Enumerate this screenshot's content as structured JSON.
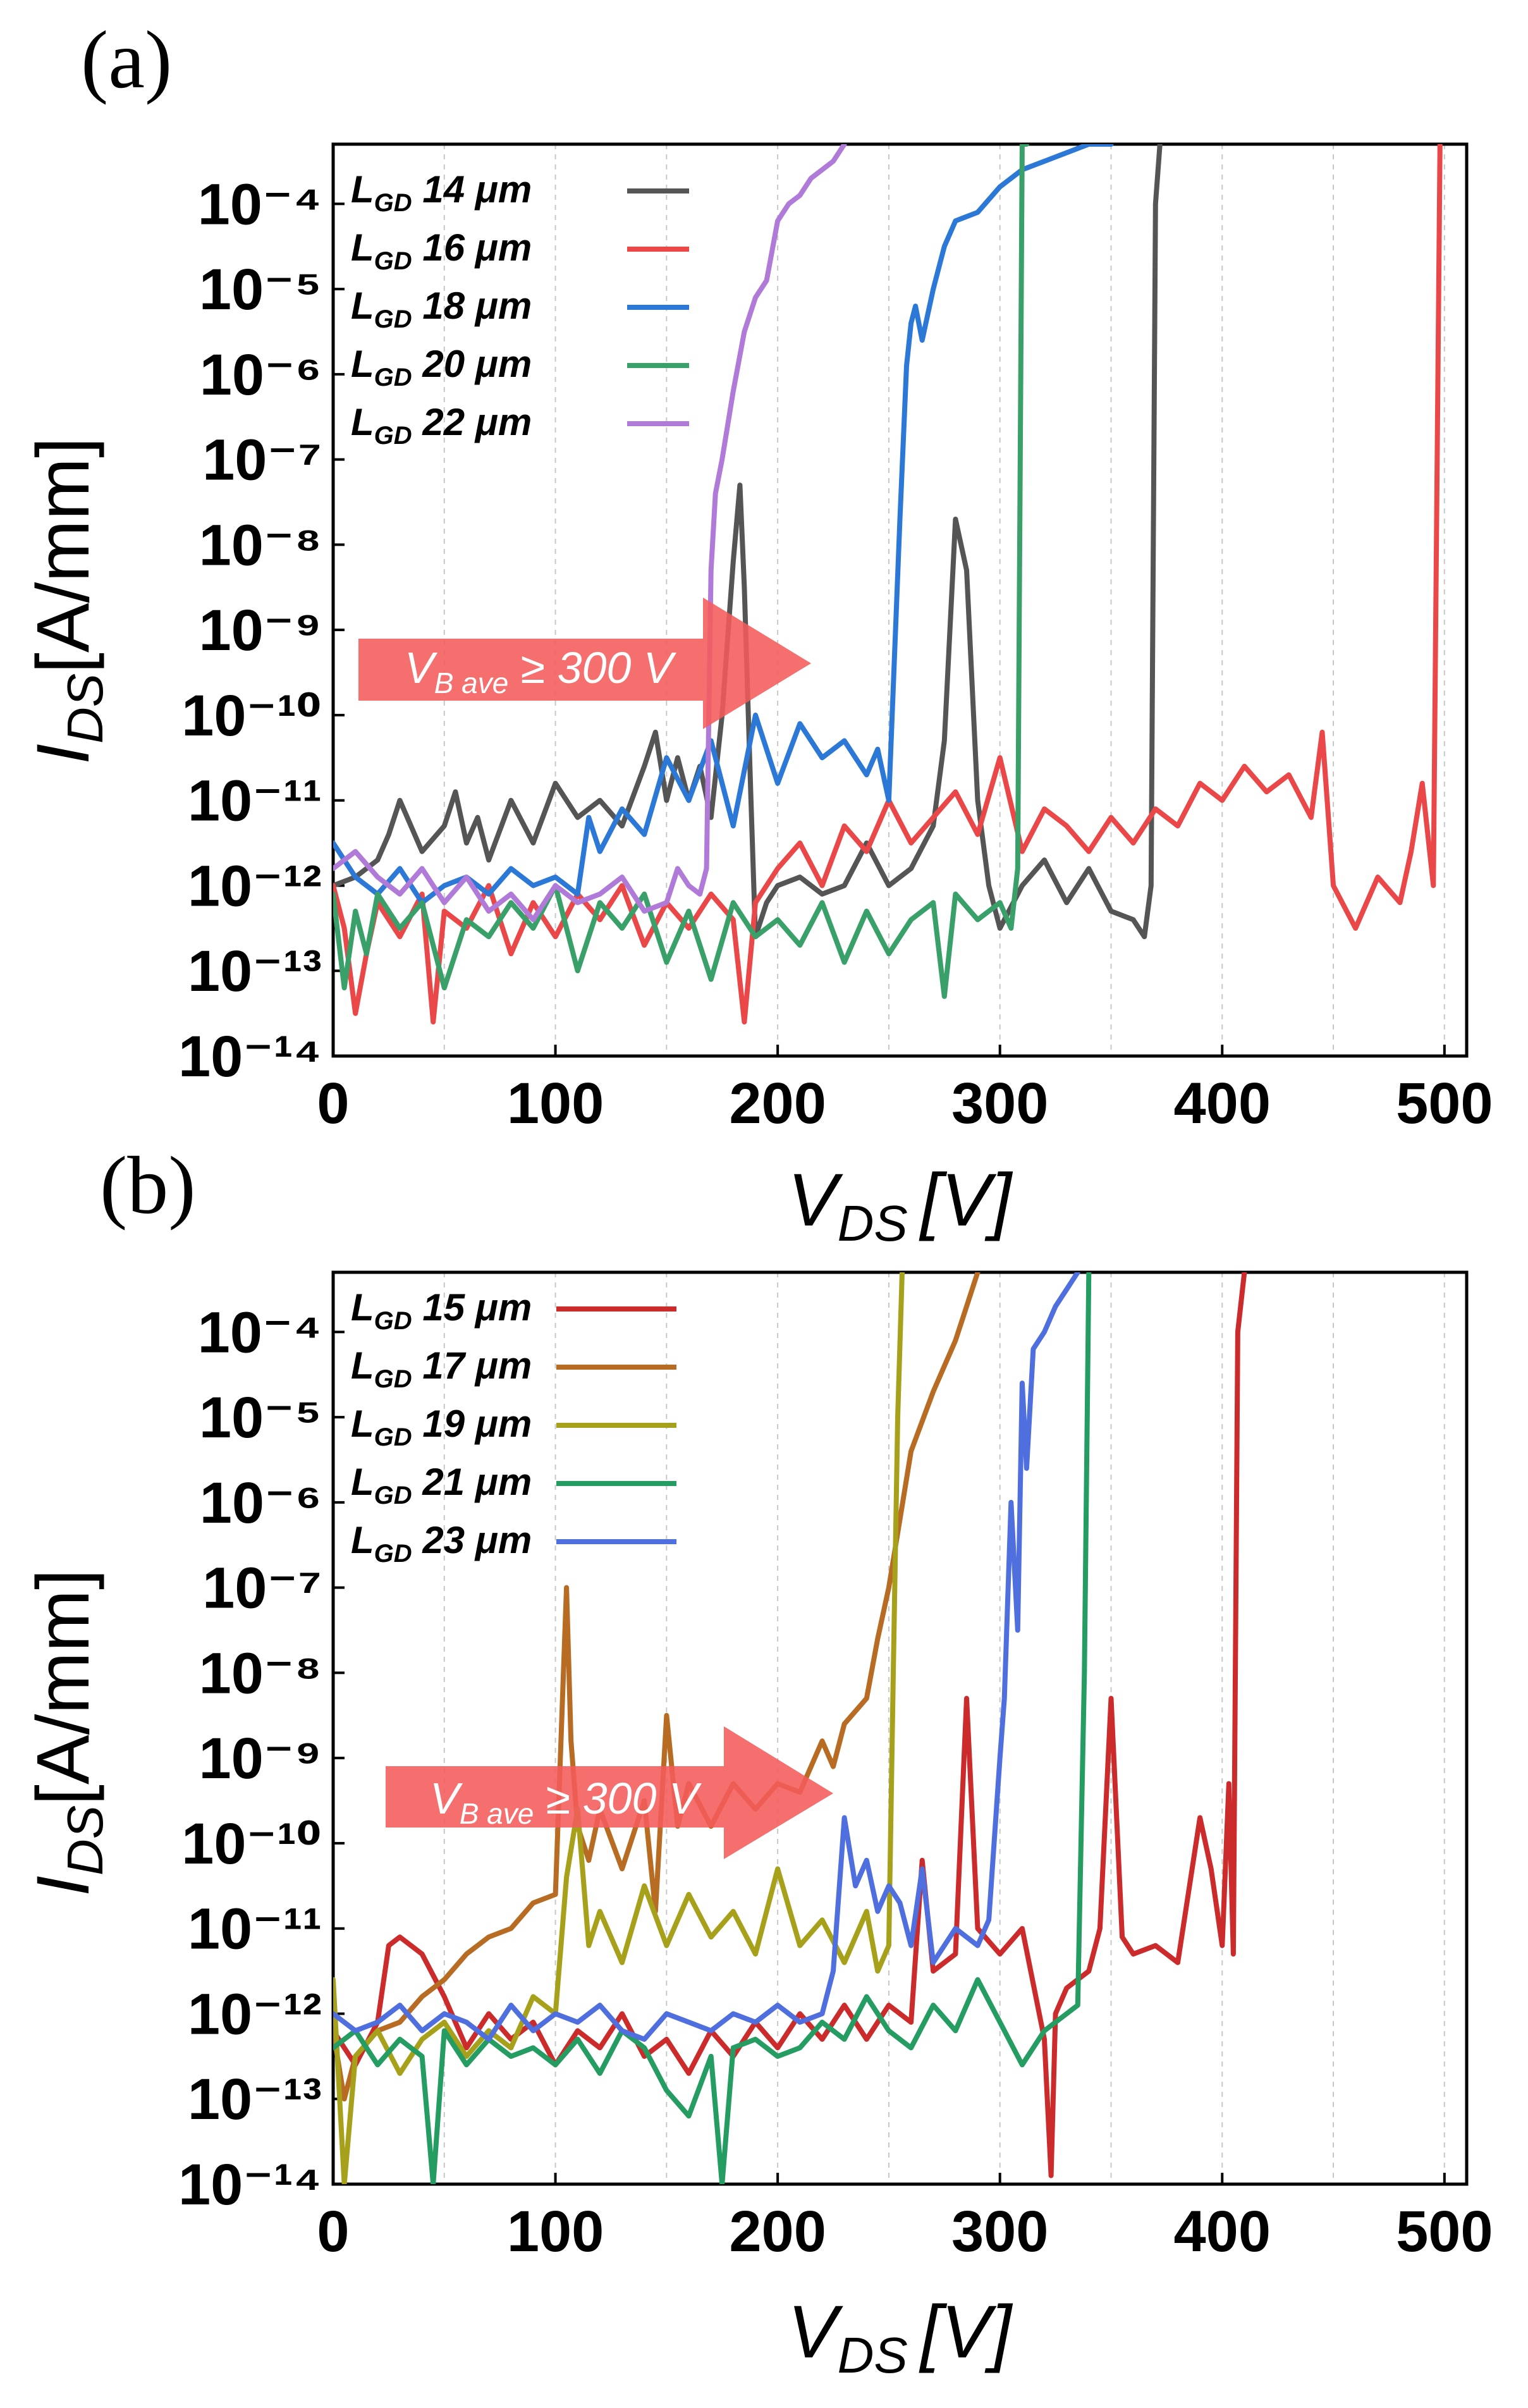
{
  "figure": {
    "panel_labels": [
      "(a)",
      "(b)"
    ]
  },
  "chart_data": [
    {
      "type": "line",
      "panel": "(a)",
      "xlabel": "V",
      "xlabel_sub": "DS",
      "xlabel_unit": "[V]",
      "ylabel": "I",
      "ylabel_sub": "DS",
      "ylabel_unit": "[A/mm]",
      "xlim": [
        0,
        510
      ],
      "ylim_exp": [
        -14,
        -3.3
      ],
      "xticks": [
        0,
        100,
        200,
        300,
        400,
        500
      ],
      "yticks_exp": [
        -14,
        -13,
        -12,
        -11,
        -10,
        -9,
        -8,
        -7,
        -6,
        -5,
        -4
      ],
      "grid": "vertical dashed",
      "annotation": {
        "text_main": "V",
        "text_sub": "B ave",
        "text_rest": " ≥ 300 V",
        "color": "#f45b5b"
      },
      "series": [
        {
          "name_main": "L",
          "name_sub": "GD",
          "name_rest": " 14 μm",
          "color": "#555555",
          "x": [
            0,
            10,
            20,
            25,
            30,
            40,
            50,
            55,
            60,
            65,
            70,
            80,
            90,
            100,
            110,
            120,
            130,
            140,
            145,
            150,
            155,
            160,
            165,
            170,
            175,
            180,
            183,
            185,
            188,
            190,
            195,
            200,
            210,
            220,
            230,
            240,
            250,
            260,
            270,
            275,
            280,
            285,
            290,
            295,
            300,
            310,
            320,
            330,
            340,
            350,
            360,
            365,
            368,
            370,
            372
          ],
          "y": [
            -12,
            -11.9,
            -11.7,
            -11.4,
            -11,
            -11.6,
            -11.3,
            -10.9,
            -11.5,
            -11.2,
            -11.7,
            -11,
            -11.5,
            -10.8,
            -11.2,
            -11,
            -11.3,
            -10.6,
            -10.2,
            -11,
            -10.5,
            -11,
            -10.6,
            -11.2,
            -10,
            -8.2,
            -7.3,
            -8.5,
            -11,
            -12.6,
            -12.2,
            -12,
            -11.9,
            -12.1,
            -12,
            -11.5,
            -12,
            -11.8,
            -11.3,
            -10.3,
            -7.7,
            -8.3,
            -11,
            -12,
            -12.5,
            -12,
            -11.7,
            -12.2,
            -11.8,
            -12.3,
            -12.4,
            -12.6,
            -12,
            -4,
            -3.3
          ]
        },
        {
          "name_main": "L",
          "name_sub": "GD",
          "name_rest": " 16 μm",
          "color": "#ea4848",
          "x": [
            0,
            5,
            10,
            15,
            20,
            30,
            40,
            45,
            50,
            60,
            70,
            80,
            90,
            100,
            110,
            120,
            130,
            140,
            150,
            160,
            170,
            180,
            185,
            190,
            200,
            210,
            220,
            230,
            240,
            250,
            260,
            270,
            280,
            290,
            300,
            310,
            320,
            330,
            340,
            350,
            360,
            370,
            380,
            390,
            400,
            410,
            420,
            430,
            440,
            445,
            450,
            460,
            470,
            480,
            485,
            490,
            495,
            498
          ],
          "y": [
            -12,
            -12.5,
            -13.5,
            -12.8,
            -12.2,
            -12.6,
            -12.1,
            -13.6,
            -12.3,
            -12.5,
            -12,
            -12.8,
            -12.2,
            -12.6,
            -12.1,
            -12.4,
            -12,
            -12.7,
            -12.2,
            -12.5,
            -12.1,
            -12.4,
            -13.6,
            -12.2,
            -11.8,
            -11.5,
            -12,
            -11.3,
            -11.6,
            -11,
            -11.5,
            -11.2,
            -10.9,
            -11.4,
            -10.5,
            -11.6,
            -11.1,
            -11.3,
            -11.6,
            -11.2,
            -11.5,
            -11.1,
            -11.3,
            -10.8,
            -11,
            -10.6,
            -10.9,
            -10.7,
            -11.2,
            -10.2,
            -12,
            -12.5,
            -11.9,
            -12.2,
            -11.6,
            -10.8,
            -12,
            -3.3
          ]
        },
        {
          "name_main": "L",
          "name_sub": "GD",
          "name_rest": " 18 μm",
          "color": "#2c78d6",
          "x": [
            0,
            10,
            20,
            30,
            40,
            50,
            60,
            70,
            80,
            90,
            100,
            110,
            115,
            120,
            130,
            140,
            150,
            160,
            170,
            180,
            190,
            200,
            210,
            220,
            230,
            240,
            245,
            250,
            255,
            258,
            260,
            262,
            265,
            270,
            275,
            280,
            290,
            300,
            310,
            320,
            330,
            340,
            350
          ],
          "y": [
            -11.5,
            -11.9,
            -12.1,
            -11.8,
            -12.2,
            -12,
            -11.9,
            -12.1,
            -11.8,
            -12,
            -11.9,
            -12.1,
            -11.2,
            -11.6,
            -11.1,
            -11.4,
            -10.5,
            -11,
            -10.3,
            -11.3,
            -10,
            -10.8,
            -10.1,
            -10.5,
            -10.3,
            -10.7,
            -10.4,
            -11,
            -7.7,
            -5.9,
            -5.4,
            -5.2,
            -5.6,
            -5,
            -4.5,
            -4.2,
            -4.1,
            -3.8,
            -3.6,
            -3.5,
            -3.4,
            -3.3,
            -3.3
          ]
        },
        {
          "name_main": "L",
          "name_sub": "GD",
          "name_rest": " 20 μm",
          "color": "#3aa06a",
          "x": [
            0,
            5,
            10,
            15,
            20,
            30,
            40,
            50,
            60,
            70,
            80,
            90,
            100,
            110,
            120,
            130,
            140,
            150,
            160,
            170,
            180,
            190,
            200,
            210,
            220,
            230,
            240,
            250,
            260,
            270,
            275,
            280,
            290,
            300,
            305,
            308,
            310,
            312
          ],
          "y": [
            -12.1,
            -13.2,
            -12.3,
            -12.8,
            -12.1,
            -12.5,
            -12.2,
            -13.2,
            -12.4,
            -12.6,
            -12.2,
            -12.5,
            -12,
            -13,
            -12.2,
            -12.5,
            -12.1,
            -12.9,
            -12.3,
            -13.1,
            -12.2,
            -12.6,
            -12.4,
            -12.7,
            -12.2,
            -12.9,
            -12.3,
            -12.8,
            -12.4,
            -12.2,
            -13.3,
            -12.1,
            -12.4,
            -12.2,
            -12.5,
            -11.8,
            -3.3,
            -3.3
          ]
        },
        {
          "name_main": "L",
          "name_sub": "GD",
          "name_rest": " 22 μm",
          "color": "#b07ad8",
          "x": [
            0,
            10,
            20,
            30,
            40,
            50,
            60,
            70,
            80,
            90,
            100,
            110,
            120,
            130,
            140,
            150,
            155,
            160,
            165,
            168,
            170,
            172,
            175,
            180,
            185,
            190,
            195,
            200,
            205,
            210,
            215,
            220,
            225,
            230
          ],
          "y": [
            -11.8,
            -11.6,
            -11.9,
            -12.1,
            -11.8,
            -12.2,
            -11.9,
            -12.3,
            -12.1,
            -12.4,
            -12,
            -12.2,
            -12.1,
            -11.9,
            -12.3,
            -12.2,
            -11.8,
            -12,
            -12.1,
            -11.8,
            -8.3,
            -7.4,
            -7,
            -6.2,
            -5.5,
            -5.1,
            -4.9,
            -4.2,
            -4,
            -3.9,
            -3.7,
            -3.6,
            -3.5,
            -3.3
          ]
        }
      ]
    },
    {
      "type": "line",
      "panel": "(b)",
      "xlabel": "V",
      "xlabel_sub": "DS",
      "xlabel_unit": "[V]",
      "ylabel": "I",
      "ylabel_sub": "DS",
      "ylabel_unit": "[A/mm]",
      "xlim": [
        0,
        510
      ],
      "ylim_exp": [
        -14,
        -3.3
      ],
      "xticks": [
        0,
        100,
        200,
        300,
        400,
        500
      ],
      "yticks_exp": [
        -14,
        -13,
        -12,
        -11,
        -10,
        -9,
        -8,
        -7,
        -6,
        -5,
        -4
      ],
      "grid": "vertical dashed",
      "annotation": {
        "text_main": "V",
        "text_sub": "B ave",
        "text_rest": " ≥ 300 V",
        "color": "#f45b5b"
      },
      "series": [
        {
          "name_main": "L",
          "name_sub": "GD",
          "name_rest": " 15 μm",
          "color": "#cc2b2b",
          "x": [
            0,
            10,
            20,
            25,
            30,
            40,
            50,
            60,
            70,
            80,
            90,
            100,
            110,
            120,
            130,
            140,
            150,
            160,
            170,
            180,
            190,
            200,
            210,
            220,
            230,
            240,
            250,
            260,
            265,
            270,
            280,
            285,
            290,
            300,
            310,
            320,
            323,
            325,
            330,
            340,
            345,
            350,
            355,
            360,
            370,
            380,
            390,
            395,
            400,
            403,
            405,
            407,
            410
          ],
          "y": [
            -12.2,
            -12.6,
            -12.1,
            -11.2,
            -11.1,
            -11.3,
            -11.8,
            -12.4,
            -12,
            -12.3,
            -12.1,
            -12.6,
            -12.2,
            -12.4,
            -12,
            -12.5,
            -12.3,
            -12.7,
            -12.2,
            -12.5,
            -12.1,
            -12.4,
            -12,
            -12.3,
            -11.9,
            -12.3,
            -11.9,
            -12.1,
            -10.2,
            -11.5,
            -11.3,
            -8.3,
            -11,
            -11.3,
            -11,
            -12.3,
            -13.9,
            -12,
            -11.7,
            -11.5,
            -11,
            -8.3,
            -11.1,
            -11.3,
            -11.2,
            -11.4,
            -9.7,
            -10.3,
            -11.2,
            -9.3,
            -11.3,
            -4,
            -3.3
          ]
        },
        {
          "name_main": "L",
          "name_sub": "GD",
          "name_rest": " 17 μm",
          "color": "#b86b22",
          "x": [
            0,
            5,
            10,
            20,
            30,
            40,
            50,
            60,
            70,
            80,
            90,
            100,
            105,
            107,
            110,
            115,
            120,
            130,
            140,
            145,
            150,
            155,
            160,
            170,
            180,
            190,
            200,
            210,
            220,
            225,
            230,
            240,
            245,
            250,
            255,
            260,
            270,
            280,
            285,
            290
          ],
          "y": [
            -12.2,
            -13,
            -12.5,
            -12.2,
            -12.1,
            -11.8,
            -11.6,
            -11.3,
            -11.1,
            -11,
            -10.7,
            -10.6,
            -7,
            -8.8,
            -9.8,
            -10.2,
            -9.6,
            -10.3,
            -9.5,
            -10.8,
            -8.5,
            -9.8,
            -9.3,
            -9.8,
            -9.3,
            -9.6,
            -9.3,
            -9.4,
            -8.8,
            -9.1,
            -8.6,
            -8.3,
            -7.6,
            -7,
            -6.2,
            -5.4,
            -4.7,
            -4.1,
            -3.7,
            -3.3
          ]
        },
        {
          "name_main": "L",
          "name_sub": "GD",
          "name_rest": " 19 μm",
          "color": "#a6a01a",
          "x": [
            0,
            5,
            10,
            20,
            30,
            40,
            50,
            60,
            70,
            80,
            90,
            100,
            105,
            110,
            115,
            120,
            130,
            140,
            150,
            160,
            170,
            180,
            190,
            200,
            210,
            220,
            230,
            240,
            245,
            250,
            252,
            254,
            256
          ],
          "y": [
            -11.6,
            -14,
            -12.5,
            -12.2,
            -12.7,
            -12.3,
            -12.1,
            -12.5,
            -12.2,
            -12.4,
            -11.8,
            -12,
            -10.4,
            -9.6,
            -11.2,
            -10.8,
            -11.4,
            -10.5,
            -11.2,
            -10.6,
            -11.1,
            -10.8,
            -11.3,
            -10.3,
            -11.2,
            -10.9,
            -11.4,
            -10.8,
            -11.5,
            -11.2,
            -8,
            -5,
            -3.3
          ]
        },
        {
          "name_main": "L",
          "name_sub": "GD",
          "name_rest": " 21 μm",
          "color": "#249c62",
          "x": [
            0,
            10,
            20,
            30,
            40,
            45,
            50,
            60,
            70,
            80,
            90,
            100,
            110,
            120,
            130,
            140,
            150,
            160,
            170,
            175,
            180,
            190,
            200,
            210,
            220,
            230,
            240,
            250,
            260,
            270,
            280,
            290,
            300,
            310,
            320,
            330,
            335,
            338,
            340
          ],
          "y": [
            -12.4,
            -12.2,
            -12.6,
            -12.3,
            -12.5,
            -14,
            -12.2,
            -12.6,
            -12.3,
            -12.5,
            -12.4,
            -12.6,
            -12.3,
            -12.7,
            -12.2,
            -12.4,
            -12.9,
            -13.2,
            -12.5,
            -14,
            -12.4,
            -12.3,
            -12.5,
            -12.4,
            -12.1,
            -12.3,
            -11.8,
            -12.2,
            -12.4,
            -11.9,
            -12.2,
            -11.6,
            -12.1,
            -12.6,
            -12.2,
            -12,
            -11.9,
            -8,
            -3.3
          ]
        },
        {
          "name_main": "L",
          "name_sub": "GD",
          "name_rest": " 23 μm",
          "color": "#4f6fde",
          "x": [
            0,
            10,
            20,
            30,
            40,
            50,
            60,
            70,
            80,
            90,
            100,
            110,
            120,
            130,
            140,
            150,
            160,
            170,
            180,
            190,
            200,
            210,
            220,
            225,
            230,
            235,
            240,
            245,
            250,
            255,
            260,
            265,
            270,
            280,
            290,
            295,
            300,
            302,
            305,
            308,
            310,
            312,
            315,
            320,
            325,
            330,
            335
          ],
          "y": [
            -12,
            -12.2,
            -12.1,
            -11.9,
            -12.2,
            -12,
            -12.1,
            -12.3,
            -11.9,
            -12.2,
            -12,
            -12.1,
            -11.9,
            -12.2,
            -12.3,
            -12,
            -12.1,
            -12.2,
            -12,
            -12.1,
            -11.9,
            -12.1,
            -12,
            -11.5,
            -9.7,
            -10.5,
            -10.2,
            -10.8,
            -10.5,
            -10.7,
            -11.2,
            -10.3,
            -11.4,
            -11,
            -11.2,
            -10.9,
            -9,
            -8.3,
            -6,
            -7.5,
            -4.6,
            -5.6,
            -4.2,
            -4,
            -3.7,
            -3.5,
            -3.3
          ]
        }
      ]
    }
  ]
}
